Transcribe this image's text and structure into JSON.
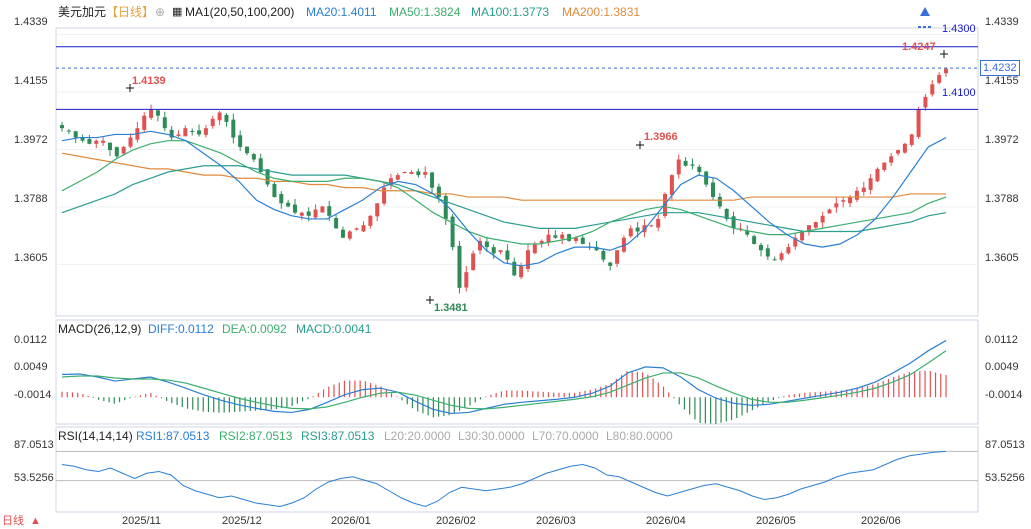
{
  "header": {
    "symbol": "美元加元",
    "period": "【日线】",
    "ma_label": "MA1(20,50,100,200)",
    "ma20": "MA20:1.4011",
    "ma50": "MA50:1.3824",
    "ma100": "MA100:1.3773",
    "ma200": "MA200:1.3831"
  },
  "price_axis": [
    "1.4339",
    "1.4155",
    "1.3972",
    "1.3788",
    "1.3605"
  ],
  "macd": {
    "title": "MACD(26,12,9)",
    "diff": "DIFF:0.0112",
    "dea": "DEA:0.0092",
    "macd": "MACD:0.0041",
    "axis": [
      "0.0112",
      "0.0049",
      "-0.0014"
    ]
  },
  "rsi": {
    "title": "RSI(14,14,14)",
    "rsi1": "RSI1:87.0513",
    "rsi2": "RSI2:87.0513",
    "rsi3": "RSI3:87.0513",
    "l20": "L20:20.0000",
    "l30": "L30:30.0000",
    "l70": "L70:70.0000",
    "l80": "L80:80.0000",
    "axis": [
      "87.0513",
      "53.5256"
    ]
  },
  "x_axis": [
    "2025/11",
    "2025/12",
    "2026/01",
    "2026/02",
    "2026/03",
    "2026/04",
    "2026/05",
    "2026/06"
  ],
  "annotations": {
    "hline_top": "1.4300",
    "hline_bottom": "1.4100",
    "last_price": "1.4232",
    "high_1": "1.4139",
    "low": "1.3481",
    "high_2": "1.3966",
    "high_3": "1.4247"
  },
  "footer": {
    "period_short": "日线",
    "arrow": "▲"
  },
  "colors": {
    "up": "#e05252",
    "down": "#2e8b57",
    "ma20": "#2a7fd4",
    "ma50": "#3cae6e",
    "ma100": "#2a9d8f",
    "ma200": "#e08a3c",
    "hline": "#1a1acd",
    "dashed": "#3a6fd8"
  },
  "chart_data": {
    "type": "candlestick",
    "x_ticks": [
      "2025/11",
      "2025/12",
      "2026/01",
      "2026/02",
      "2026/03",
      "2026/04",
      "2026/05",
      "2026/06"
    ],
    "y_ticks": [
      1.4339,
      1.4155,
      1.3972,
      1.3788,
      1.3605
    ],
    "ylim": [
      1.344,
      1.436
    ],
    "close_path": [
      1.404,
      1.403,
      1.401,
      1.4,
      1.399,
      1.4,
      1.4,
      1.397,
      1.395,
      1.398,
      1.401,
      1.404,
      1.408,
      1.41,
      1.408,
      1.404,
      1.401,
      1.402,
      1.404,
      1.403,
      1.402,
      1.404,
      1.407,
      1.409,
      1.406,
      1.401,
      1.398,
      1.396,
      1.394,
      1.39,
      1.386,
      1.382,
      1.38,
      1.379,
      1.377,
      1.377,
      1.376,
      1.378,
      1.379,
      1.376,
      1.372,
      1.369,
      1.371,
      1.372,
      1.373,
      1.376,
      1.38,
      1.385,
      1.388,
      1.389,
      1.39,
      1.39,
      1.389,
      1.39,
      1.385,
      1.382,
      1.375,
      1.366,
      1.353,
      1.358,
      1.364,
      1.368,
      1.366,
      1.364,
      1.365,
      1.362,
      1.357,
      1.36,
      1.365,
      1.367,
      1.368,
      1.37,
      1.369,
      1.37,
      1.368,
      1.369,
      1.367,
      1.366,
      1.365,
      1.362,
      1.36,
      1.365,
      1.369,
      1.372,
      1.371,
      1.373,
      1.373,
      1.375,
      1.383,
      1.389,
      1.394,
      1.392,
      1.392,
      1.39,
      1.386,
      1.382,
      1.379,
      1.375,
      1.372,
      1.372,
      1.37,
      1.367,
      1.365,
      1.363,
      1.362,
      1.364,
      1.366,
      1.369,
      1.371,
      1.373,
      1.374,
      1.376,
      1.378,
      1.38,
      1.381,
      1.382,
      1.384,
      1.385,
      1.388,
      1.391,
      1.393,
      1.395,
      1.397,
      1.399,
      1.402,
      1.41,
      1.414,
      1.418,
      1.421,
      1.423
    ],
    "ma20": [
      1.4,
      1.401,
      1.401,
      1.402,
      1.402,
      1.403,
      1.402,
      1.4,
      1.396,
      1.392,
      1.387,
      1.381,
      1.378,
      1.376,
      1.375,
      1.375,
      1.378,
      1.381,
      1.385,
      1.387,
      1.386,
      1.383,
      1.378,
      1.371,
      1.365,
      1.361,
      1.36,
      1.361,
      1.364,
      1.366,
      1.366,
      1.365,
      1.367,
      1.372,
      1.379,
      1.386,
      1.389,
      1.388,
      1.384,
      1.379,
      1.374,
      1.37,
      1.367,
      1.366,
      1.367,
      1.37,
      1.375,
      1.382,
      1.39,
      1.398,
      1.401
    ],
    "ma50": [
      1.384,
      1.387,
      1.39,
      1.394,
      1.397,
      1.399,
      1.4,
      1.4,
      1.398,
      1.396,
      1.393,
      1.39,
      1.388,
      1.387,
      1.387,
      1.387,
      1.388,
      1.388,
      1.387,
      1.385,
      1.381,
      1.377,
      1.374,
      1.371,
      1.369,
      1.368,
      1.367,
      1.367,
      1.368,
      1.369,
      1.371,
      1.374,
      1.376,
      1.378,
      1.379,
      1.378,
      1.376,
      1.374,
      1.372,
      1.371,
      1.37,
      1.37,
      1.371,
      1.372,
      1.373,
      1.374,
      1.375,
      1.376,
      1.377,
      1.38,
      1.382
    ],
    "ma100": [
      1.377,
      1.379,
      1.381,
      1.383,
      1.386,
      1.388,
      1.39,
      1.391,
      1.392,
      1.392,
      1.392,
      1.391,
      1.39,
      1.389,
      1.389,
      1.389,
      1.389,
      1.388,
      1.387,
      1.386,
      1.384,
      1.382,
      1.38,
      1.378,
      1.376,
      1.374,
      1.373,
      1.372,
      1.372,
      1.372,
      1.373,
      1.374,
      1.375,
      1.376,
      1.377,
      1.377,
      1.377,
      1.376,
      1.375,
      1.374,
      1.373,
      1.372,
      1.371,
      1.371,
      1.371,
      1.371,
      1.372,
      1.373,
      1.374,
      1.376,
      1.377
    ],
    "ma200": [
      1.396,
      1.395,
      1.394,
      1.393,
      1.392,
      1.391,
      1.391,
      1.39,
      1.389,
      1.389,
      1.388,
      1.388,
      1.387,
      1.387,
      1.386,
      1.386,
      1.385,
      1.385,
      1.384,
      1.384,
      1.384,
      1.383,
      1.383,
      1.382,
      1.382,
      1.382,
      1.381,
      1.381,
      1.381,
      1.381,
      1.381,
      1.381,
      1.381,
      1.381,
      1.381,
      1.381,
      1.381,
      1.381,
      1.381,
      1.382,
      1.382,
      1.382,
      1.382,
      1.382,
      1.382,
      1.382,
      1.382,
      1.382,
      1.383,
      1.383,
      1.383
    ],
    "hlines": [
      1.43,
      1.41
    ],
    "last_price": 1.4232,
    "annotations": [
      {
        "label": "1.4139",
        "value": 1.4139
      },
      {
        "label": "1.3481",
        "value": 1.3481
      },
      {
        "label": "1.3966",
        "value": 1.3966
      },
      {
        "label": "1.4247",
        "value": 1.4247
      }
    ],
    "macd": {
      "ylim": [
        -0.0045,
        0.0125
      ],
      "y_ticks": [
        0.0112,
        0.0049,
        -0.0014
      ],
      "diff": [
        0.0045,
        0.0046,
        0.004,
        0.0032,
        0.0036,
        0.004,
        0.003,
        0.0018,
        0.0005,
        -0.0006,
        -0.0015,
        -0.0022,
        -0.0028,
        -0.003,
        -0.0024,
        -0.001,
        0.0005,
        0.0015,
        0.0018,
        0.001,
        -0.0008,
        -0.0024,
        -0.0032,
        -0.003,
        -0.0022,
        -0.0014,
        -0.001,
        -0.0007,
        -0.0004,
        0.0,
        0.0008,
        0.0022,
        0.0048,
        0.006,
        0.0058,
        0.004,
        0.0015,
        -0.0002,
        -0.0012,
        -0.0016,
        -0.0014,
        -0.0008,
        -0.0002,
        0.0004,
        0.001,
        0.0018,
        0.003,
        0.0048,
        0.0068,
        0.0092,
        0.0112
      ],
      "dea": [
        0.004,
        0.0042,
        0.0042,
        0.0038,
        0.0036,
        0.0036,
        0.0034,
        0.0028,
        0.0018,
        0.0008,
        -0.0002,
        -0.001,
        -0.0017,
        -0.0022,
        -0.0023,
        -0.0019,
        -0.001,
        0.0,
        0.0008,
        0.001,
        0.0004,
        -0.0006,
        -0.0016,
        -0.0022,
        -0.0023,
        -0.002,
        -0.0016,
        -0.0012,
        -0.0008,
        -0.0004,
        0.0001,
        0.001,
        0.0024,
        0.0038,
        0.0048,
        0.0048,
        0.0038,
        0.0022,
        0.0008,
        -0.0004,
        -0.001,
        -0.001,
        -0.0006,
        -0.0001,
        0.0004,
        0.001,
        0.0018,
        0.003,
        0.0045,
        0.0068,
        0.0092
      ]
    },
    "rsi": {
      "ylim": [
        20,
        100
      ],
      "y_ticks": [
        87.0513,
        53.5256
      ],
      "values": [
        72,
        70,
        66,
        64,
        68,
        62,
        56,
        62,
        64,
        60,
        48,
        42,
        38,
        34,
        36,
        32,
        28,
        26,
        24,
        28,
        34,
        44,
        52,
        56,
        58,
        54,
        50,
        42,
        34,
        28,
        24,
        30,
        40,
        46,
        44,
        42,
        44,
        46,
        50,
        56,
        62,
        66,
        70,
        72,
        68,
        60,
        58,
        52,
        46,
        40,
        36,
        40,
        44,
        48,
        50,
        46,
        42,
        36,
        32,
        34,
        38,
        44,
        48,
        52,
        58,
        62,
        64,
        66,
        72,
        78,
        82,
        84,
        86,
        87
      ]
    }
  }
}
